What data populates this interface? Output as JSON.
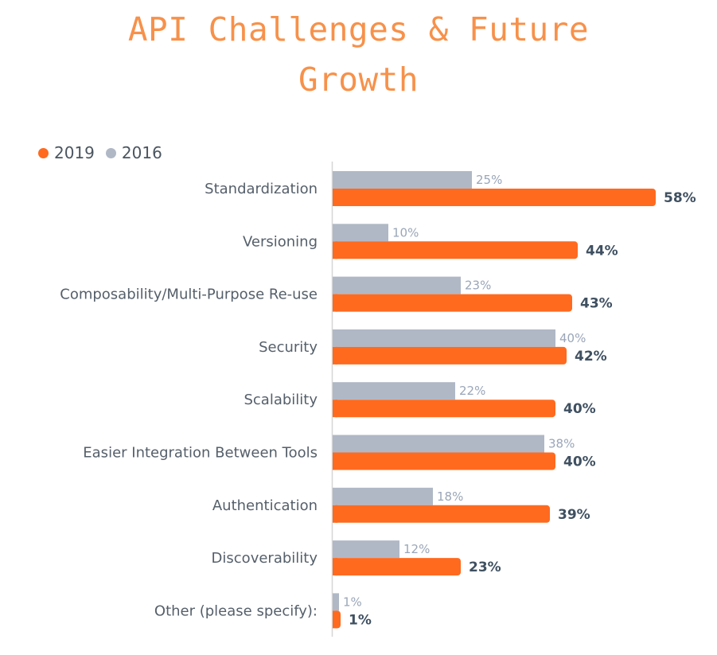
{
  "title": "API Challenges & Future Growth",
  "title_line1": "API Challenges & Future",
  "title_line2": "Growth",
  "colors": {
    "title": "#f7914a",
    "s2019": "#ff6a1f",
    "s2016": "#b0b8c6",
    "axis": "#d6d6d6"
  },
  "chart_data": {
    "type": "bar",
    "orientation": "horizontal",
    "title": "API Challenges & Future Growth",
    "xlabel": "",
    "ylabel": "",
    "xlim": [
      0,
      60
    ],
    "grid": false,
    "legend_position": "top-left",
    "categories": [
      "Standardization",
      "Versioning",
      "Composability/Multi-Purpose Re-use",
      "Security",
      "Scalability",
      "Easier Integration Between Tools",
      "Authentication",
      "Discoverability",
      "Other (please specify):"
    ],
    "series": [
      {
        "name": "2019",
        "values": [
          58,
          44,
          43,
          42,
          40,
          40,
          39,
          23,
          1
        ],
        "labels": [
          "58%",
          "44%",
          "43%",
          "42%",
          "40%",
          "40%",
          "39%",
          "23%",
          "1%"
        ]
      },
      {
        "name": "2016",
        "values": [
          25,
          10,
          23,
          40,
          22,
          38,
          18,
          12,
          1
        ],
        "labels": [
          "25%",
          "10%",
          "23%",
          "40%",
          "22%",
          "38%",
          "18%",
          "12%",
          "1%"
        ]
      }
    ]
  }
}
